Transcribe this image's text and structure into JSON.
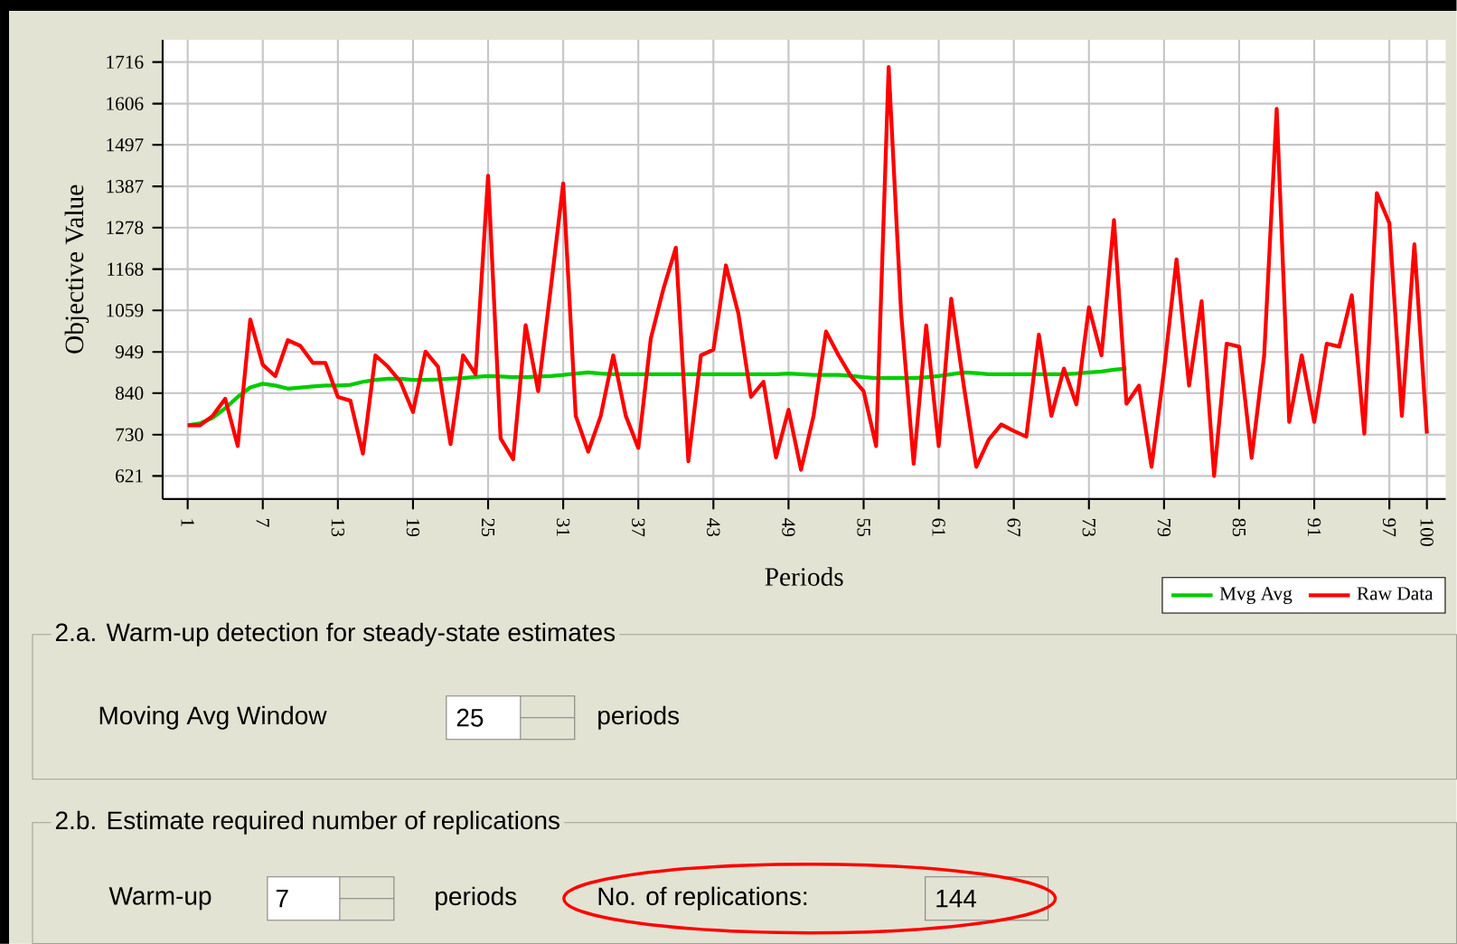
{
  "chart_data": {
    "type": "line",
    "xlabel": "Periods",
    "ylabel": "Objective Value",
    "x": [
      1,
      2,
      3,
      4,
      5,
      6,
      7,
      8,
      9,
      10,
      11,
      12,
      13,
      14,
      15,
      16,
      17,
      18,
      19,
      20,
      21,
      22,
      23,
      24,
      25,
      26,
      27,
      28,
      29,
      30,
      31,
      32,
      33,
      34,
      35,
      36,
      37,
      38,
      39,
      40,
      41,
      42,
      43,
      44,
      45,
      46,
      47,
      48,
      49,
      50,
      51,
      52,
      53,
      54,
      55,
      56,
      57,
      58,
      59,
      60,
      61,
      62,
      63,
      64,
      65,
      66,
      67,
      68,
      69,
      70,
      71,
      72,
      73,
      74,
      75,
      76,
      77,
      78,
      79,
      80,
      81,
      82,
      83,
      84,
      85,
      86,
      87,
      88,
      89,
      90,
      91,
      92,
      93,
      94,
      95,
      96,
      97,
      98,
      99,
      100
    ],
    "series": [
      {
        "name": "Mvg Avg",
        "color": "#00cc00",
        "values": [
          755,
          760,
          775,
          800,
          830,
          855,
          865,
          860,
          852,
          855,
          858,
          860,
          860,
          862,
          870,
          875,
          878,
          878,
          875,
          875,
          876,
          878,
          880,
          883,
          885,
          884,
          882,
          882,
          884,
          885,
          888,
          892,
          895,
          892,
          890,
          890,
          890,
          890,
          890,
          890,
          890,
          890,
          890,
          890,
          890,
          890,
          890,
          890,
          892,
          890,
          888,
          888,
          888,
          886,
          882,
          880,
          880,
          880,
          880,
          882,
          885,
          890,
          895,
          893,
          890,
          890,
          890,
          890,
          890,
          890,
          890,
          892,
          895,
          897,
          902,
          905,
          null,
          null,
          null,
          null,
          null,
          null,
          null,
          null,
          null,
          null,
          null,
          null,
          null,
          null,
          null,
          null,
          null,
          null,
          null,
          null,
          null,
          null,
          null,
          null
        ]
      },
      {
        "name": "Raw Data",
        "color": "#ff0000",
        "values": [
          755,
          755,
          780,
          825,
          700,
          1035,
          915,
          885,
          980,
          965,
          920,
          920,
          830,
          820,
          680,
          940,
          910,
          870,
          790,
          950,
          910,
          705,
          940,
          890,
          1415,
          720,
          665,
          1020,
          845,
          1115,
          1395,
          780,
          685,
          780,
          940,
          780,
          695,
          985,
          1115,
          1225,
          660,
          940,
          955,
          1178,
          1050,
          830,
          870,
          670,
          796,
          637,
          780,
          1003,
          940,
          884,
          845,
          700,
          1703,
          1050,
          653,
          1019,
          700,
          1090,
          860,
          645,
          717,
          757,
          740,
          725,
          995,
          780,
          905,
          810,
          1067,
          940,
          1298,
          812,
          860,
          645,
          900,
          1194,
          860,
          1083,
          621,
          971,
          963,
          669,
          940,
          1592,
          764,
          940,
          764,
          971,
          963,
          1099,
          733,
          1369,
          1290,
          780,
          1234,
          733
        ]
      }
    ],
    "xlim": [
      -1,
      101.5
    ],
    "ylim": [
      560,
      1775
    ],
    "xticks": [
      1,
      7,
      13,
      19,
      25,
      31,
      37,
      43,
      49,
      55,
      61,
      67,
      73,
      79,
      85,
      91,
      97,
      100
    ],
    "yticks": [
      621,
      730,
      840,
      949,
      1059,
      1168,
      1278,
      1387,
      1497,
      1606,
      1716
    ],
    "grid": true,
    "legend": "bottom right",
    "marker": "none",
    "line_style": "solid",
    "annotations": [
      "2.a. Warm-up detection for steady-state estimates",
      "Moving Avg Window",
      "25",
      "periods",
      "2.b. Estimate required number of replications",
      "Warm-up",
      "7",
      "periods",
      "No. of replications:",
      "144"
    ]
  }
}
